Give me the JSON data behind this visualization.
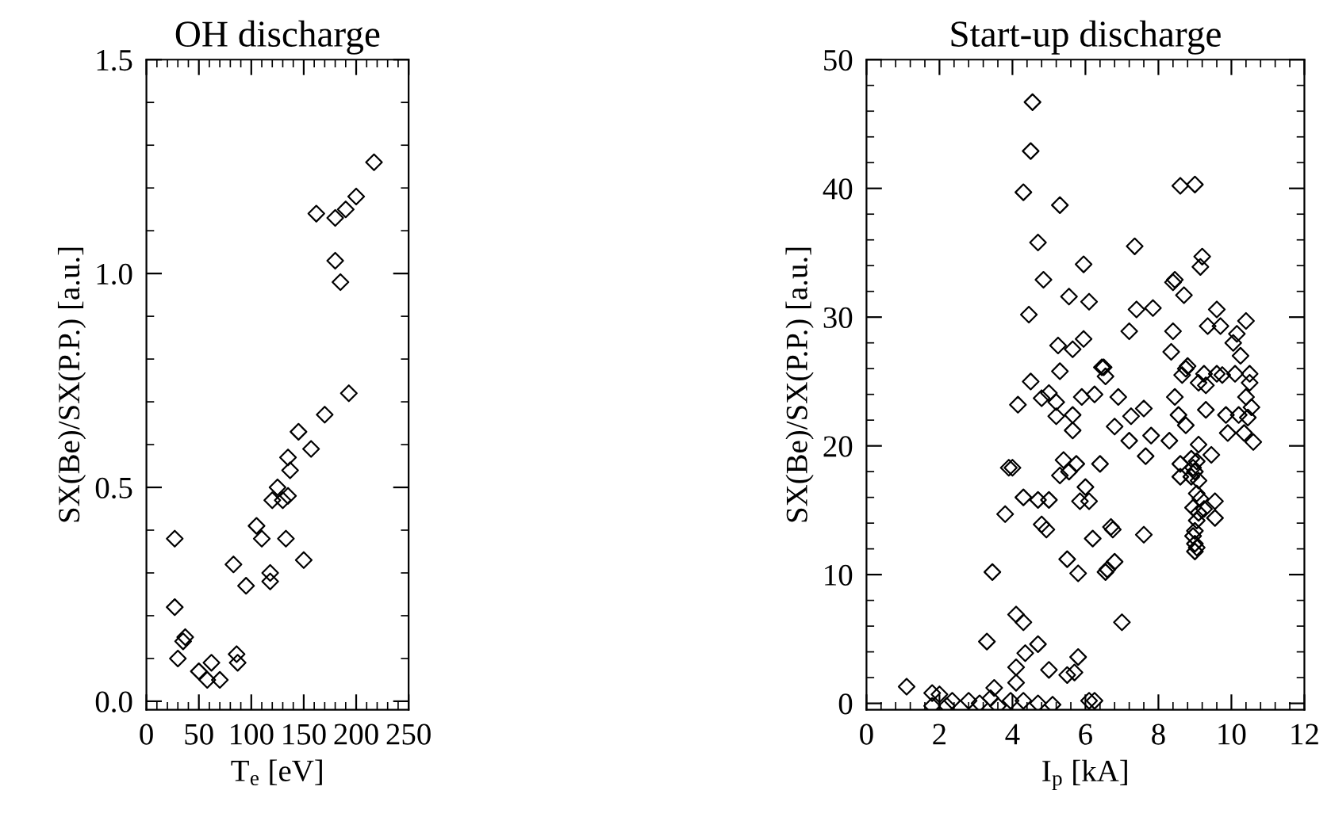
{
  "chart_data": [
    {
      "type": "scatter",
      "title": "OH discharge",
      "xlabel": "T$_{e}$ [eV]",
      "ylabel": "SX(Be)/SX(P.P.) [a.u.]",
      "marker": "diamond",
      "grid": false,
      "xlim": [
        0,
        250
      ],
      "xticks": [
        0,
        50,
        100,
        150,
        200,
        250
      ],
      "ylim": [
        -0.02,
        1.5
      ],
      "yticks": [
        {
          "value": 0,
          "label": "0.0"
        },
        0.5,
        {
          "value": 1,
          "label": "1.0"
        },
        1.5
      ],
      "series": [
        {
          "color": "#000000",
          "x": [
            27,
            27,
            30,
            35,
            37,
            50,
            58,
            62,
            70,
            83,
            86,
            87,
            95,
            105,
            110,
            118,
            118,
            120,
            125,
            130,
            133,
            135,
            135,
            137,
            145,
            150,
            157,
            162,
            170,
            180,
            180,
            185,
            190,
            193,
            200,
            217
          ],
          "values": [
            0.38,
            0.22,
            0.1,
            0.14,
            0.15,
            0.07,
            0.05,
            0.09,
            0.05,
            0.32,
            0.11,
            0.09,
            0.27,
            0.41,
            0.38,
            0.3,
            0.28,
            0.47,
            0.5,
            0.47,
            0.38,
            0.48,
            0.57,
            0.54,
            0.63,
            0.33,
            0.59,
            1.14,
            0.67,
            1.13,
            1.03,
            0.98,
            1.15,
            0.72,
            1.18,
            1.26
          ]
        }
      ]
    },
    {
      "type": "scatter",
      "title": "Start-up discharge",
      "xlabel": "I$_{p}$ [kA]",
      "ylabel": "SX(Be)/SX(P.P.) [a.u.]",
      "marker": "diamond",
      "grid": false,
      "xlim": [
        0,
        12
      ],
      "xticks": [
        0,
        2,
        4,
        6,
        8,
        10,
        12
      ],
      "ylim": [
        -0.5,
        50
      ],
      "yticks": [
        0,
        10,
        20,
        30,
        40,
        50
      ],
      "series": [
        {
          "color": "#000000",
          "x": [
            1.1,
            1.8,
            2.0,
            1.8,
            2.2,
            2.35,
            2.8,
            3.1,
            3.4,
            3.5,
            3.6,
            3.3,
            3.45,
            3.8,
            3.9,
            4.0,
            3.95,
            4.1,
            4.1,
            4.1,
            4.3,
            4.35,
            4.3,
            4.15,
            4.3,
            4.3,
            4.5,
            4.55,
            4.45,
            4.5,
            4.7,
            4.7,
            4.7,
            4.7,
            4.8,
            4.8,
            4.85,
            4.93,
            5.0,
            5.0,
            5.0,
            5.1,
            5.2,
            5.2,
            5.25,
            5.3,
            5.3,
            5.3,
            5.4,
            5.5,
            5.5,
            5.55,
            5.55,
            5.65,
            5.65,
            5.65,
            5.7,
            5.75,
            5.8,
            5.8,
            5.85,
            5.9,
            5.95,
            5.95,
            6.0,
            6.1,
            6.1,
            6.1,
            6.2,
            6.25,
            6.25,
            6.4,
            6.45,
            6.5,
            6.55,
            6.55,
            6.6,
            6.7,
            6.75,
            6.8,
            6.8,
            6.9,
            7.0,
            7.2,
            7.2,
            7.25,
            7.35,
            7.4,
            7.6,
            7.6,
            7.65,
            7.8,
            7.85,
            8.3,
            8.35,
            8.4,
            8.4,
            8.45,
            8.45,
            8.55,
            8.6,
            8.6,
            8.6,
            8.65,
            8.7,
            8.75,
            8.75,
            8.8,
            8.9,
            9.0,
            8.95,
            9.0,
            9.0,
            9.05,
            9.1,
            9.0,
            8.95,
            9.05,
            9.0,
            8.95,
            9.05,
            9.1,
            9.05,
            8.9,
            9.1,
            9.1,
            9.15,
            9.2,
            9.15,
            9.25,
            9.25,
            9.3,
            9.3,
            9.35,
            9.45,
            9.55,
            9.55,
            9.6,
            9.6,
            9.7,
            9.75,
            9.85,
            9.9,
            10.05,
            10.1,
            10.15,
            10.2,
            10.25,
            10.35,
            10.4,
            10.45,
            10.5,
            10.5,
            10.55,
            10.6,
            10.4
          ],
          "values": [
            1.3,
            0.8,
            0.7,
            -0.2,
            -0.2,
            0.2,
            0.2,
            0,
            0.4,
            1.2,
            -0.2,
            4.8,
            10.2,
            14.7,
            18.3,
            18.3,
            0.2,
            1.6,
            2.8,
            6.9,
            6.3,
            3.9,
            0.2,
            23.2,
            16.0,
            39.7,
            42.9,
            46.7,
            30.2,
            25.0,
            35.8,
            4.6,
            0,
            15.8,
            23.7,
            13.9,
            32.9,
            13.5,
            15.8,
            24.1,
            2.6,
            -0.1,
            22.3,
            23.4,
            27.8,
            25.8,
            38.7,
            17.7,
            18.9,
            2.2,
            11.2,
            31.6,
            18.0,
            21.2,
            22.4,
            27.5,
            2.4,
            18.6,
            10.1,
            3.6,
            15.7,
            23.8,
            34.1,
            28.3,
            16.8,
            15.7,
            31.2,
            0.2,
            12.8,
            0.2,
            24.0,
            18.6,
            26.1,
            26.1,
            25.4,
            10.2,
            10.4,
            13.7,
            13.5,
            21.5,
            11.0,
            23.8,
            6.3,
            20.4,
            28.9,
            22.3,
            35.5,
            30.6,
            13.1,
            22.9,
            19.2,
            20.8,
            30.7,
            20.4,
            27.3,
            32.7,
            28.9,
            32.9,
            23.8,
            22.4,
            17.6,
            18.6,
            40.2,
            25.5,
            31.7,
            26.0,
            21.6,
            26.2,
            17.6,
            40.3,
            15.2,
            13.4,
            11.8,
            16.3,
            17.3,
            18.0,
            18.3,
            18.8,
            12.4,
            13.0,
            14.2,
            14.8,
            12.1,
            19.0,
            20.1,
            24.9,
            33.9,
            34.7,
            15.9,
            15.1,
            25.6,
            22.8,
            24.7,
            29.3,
            19.3,
            15.7,
            14.4,
            25.6,
            30.6,
            29.3,
            25.5,
            22.4,
            21.0,
            28.0,
            25.6,
            28.7,
            22.4,
            27.0,
            21.0,
            23.8,
            22.2,
            25.6,
            24.9,
            23.0,
            20.3,
            29.7
          ]
        }
      ]
    }
  ]
}
